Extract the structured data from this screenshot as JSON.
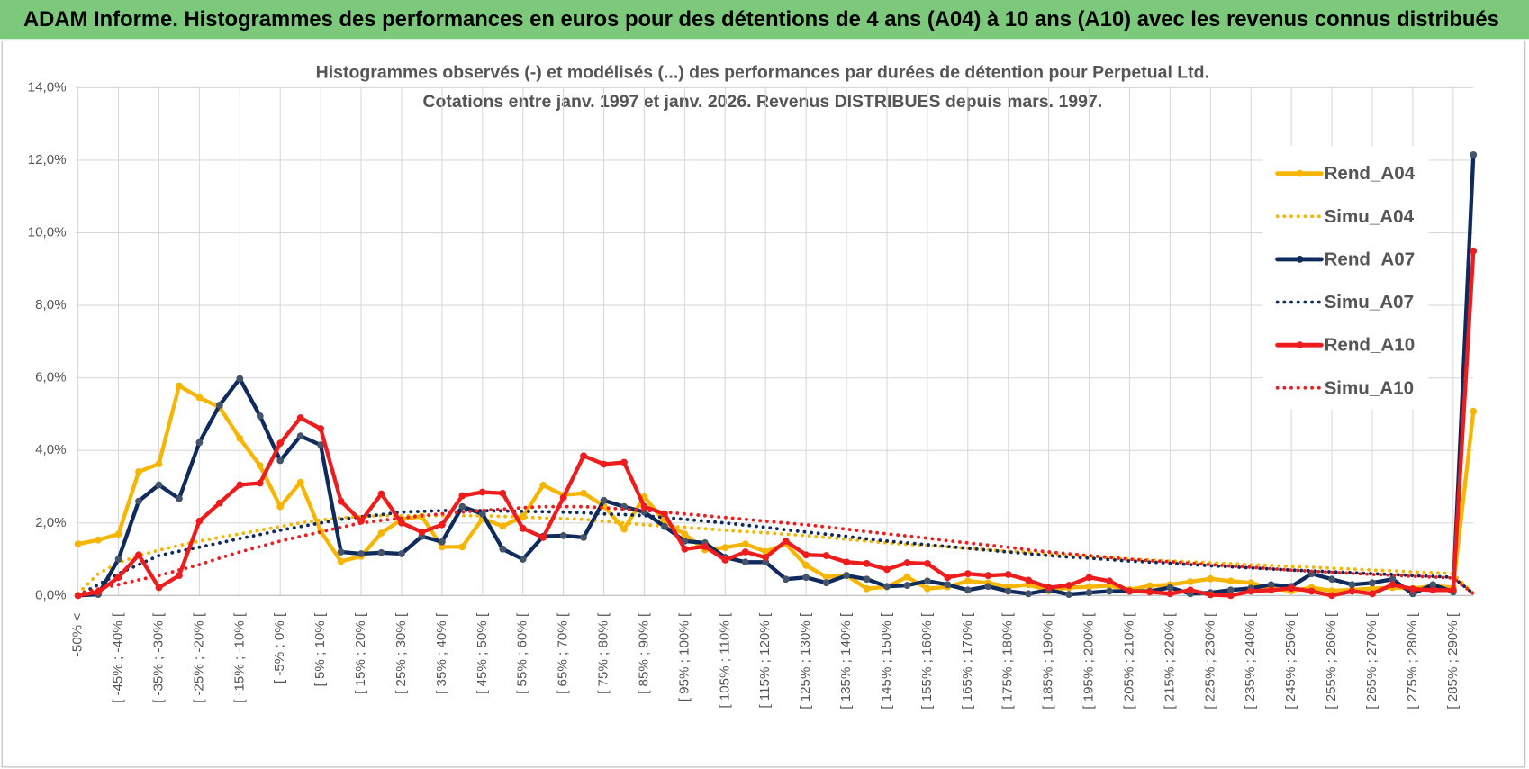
{
  "header": "ADAM Informe. Histogrammes des performances en euros pour des détentions de 4 ans (A04) à 10 ans (A10) avec les revenus connus distribués",
  "chart_data": {
    "type": "line",
    "title": "Histogrammes observés (-) et modélisés (...) des performances par durées de détention pour Perpetual Ltd.",
    "subtitle": "Cotations entre janv. 1997 et janv. 2026. Revenus DISTRIBUES depuis mars. 1997.",
    "categories": [
      "-50% <",
      null,
      "[ -45% ; -40% [",
      null,
      "[ -35% ; -30% [",
      null,
      "[ -25% ; -20% [",
      null,
      "[ -15% ; -10% [",
      null,
      "[ -5% ; 0% [",
      null,
      "[ 5% ; 10% [",
      null,
      "[ 15% ; 20% [",
      null,
      "[ 25% ; 30% [",
      null,
      "[ 35% ; 40% [",
      null,
      "[ 45% ; 50% [",
      null,
      "[ 55% ; 60% [",
      null,
      "[ 65% ; 70% [",
      null,
      "[ 75% ; 80% [",
      null,
      "[ 85% ; 90% [",
      null,
      "[ 95% ; 100% [",
      null,
      "[ 105% ; 110% [",
      null,
      "[ 115% ; 120% [",
      null,
      "[ 125% ; 130% [",
      null,
      "[ 135% ; 140% [",
      null,
      "[ 145% ; 150% [",
      null,
      "[ 155% ; 160% [",
      null,
      "[ 165% ; 170% [",
      null,
      "[ 175% ; 180% [",
      null,
      "[ 185% ; 190% [",
      null,
      "[ 195% ; 200% [",
      null,
      "[ 205% ; 210% [",
      null,
      "[ 215% ; 220% [",
      null,
      "[ 225% ; 230% [",
      null,
      "[ 235% ; 240% [",
      null,
      "[ 245% ; 250% [",
      null,
      "[ 255% ; 260% [",
      null,
      "[ 265% ; 270% [",
      null,
      "[ 275% ; 280% [",
      null,
      "[ 285% ; 290% [",
      null
    ],
    "ylim": [
      0,
      14
    ],
    "yticks": [
      {
        "value": 0,
        "label": "0,0%"
      },
      {
        "value": 2,
        "label": "2,0%"
      },
      {
        "value": 4,
        "label": "4,0%"
      },
      {
        "value": 6,
        "label": "6,0%"
      },
      {
        "value": 8,
        "label": "8,0%"
      },
      {
        "value": 10,
        "label": "10,0%"
      },
      {
        "value": 12,
        "label": "12,0%"
      },
      {
        "value": 14,
        "label": "14,0%"
      }
    ],
    "grid": true,
    "series": [
      {
        "name": "Rend_A04",
        "color": "#f7b500",
        "line_style": "solid",
        "values": [
          1.42,
          1.53,
          1.69,
          3.41,
          3.63,
          5.78,
          5.46,
          5.19,
          4.33,
          3.58,
          2.45,
          3.12,
          1.77,
          0.94,
          1.08,
          1.72,
          2.1,
          2.18,
          1.34,
          1.34,
          2.12,
          1.91,
          2.18,
          3.04,
          2.77,
          2.82,
          2.47,
          1.83,
          2.72,
          2.04,
          1.69,
          1.26,
          1.32,
          1.42,
          1.21,
          1.42,
          0.83,
          0.51,
          0.56,
          0.19,
          0.24,
          0.51,
          0.19,
          0.24,
          0.4,
          0.35,
          0.24,
          0.3,
          0.13,
          0.22,
          0.24,
          0.27,
          0.16,
          0.27,
          0.3,
          0.38,
          0.46,
          0.4,
          0.35,
          0.19,
          0.13,
          0.22,
          0.13,
          0.16,
          0.19,
          0.22,
          0.19,
          0.27,
          0.22,
          5.08
        ]
      },
      {
        "name": "Simu_A04",
        "color": "#f7b500",
        "line_style": "dotted",
        "values": [
          0.05,
          0.6,
          0.9,
          1.1,
          1.25,
          1.38,
          1.5,
          1.6,
          1.7,
          1.8,
          1.9,
          2.0,
          2.08,
          2.14,
          2.18,
          2.2,
          2.2,
          2.2,
          2.2,
          2.2,
          2.2,
          2.18,
          2.16,
          2.14,
          2.12,
          2.1,
          2.05,
          2.0,
          1.95,
          1.91,
          1.88,
          1.84,
          1.8,
          1.76,
          1.73,
          1.69,
          1.65,
          1.6,
          1.55,
          1.5,
          1.45,
          1.41,
          1.38,
          1.34,
          1.3,
          1.26,
          1.22,
          1.19,
          1.15,
          1.11,
          1.08,
          1.04,
          1.0,
          0.98,
          0.95,
          0.93,
          0.9,
          0.88,
          0.85,
          0.83,
          0.8,
          0.78,
          0.75,
          0.73,
          0.7,
          0.68,
          0.65,
          0.63,
          0.6,
          0.05
        ]
      },
      {
        "name": "Rend_A07",
        "color": "#0f2a5c",
        "line_style": "solid",
        "values": [
          0.0,
          0.03,
          1.0,
          2.6,
          3.05,
          2.67,
          4.22,
          5.25,
          5.98,
          4.95,
          3.72,
          4.4,
          4.15,
          1.2,
          1.15,
          1.18,
          1.15,
          1.63,
          1.48,
          2.45,
          2.25,
          1.28,
          1.0,
          1.63,
          1.65,
          1.6,
          2.62,
          2.45,
          2.3,
          1.9,
          1.5,
          1.45,
          1.05,
          0.92,
          0.92,
          0.45,
          0.5,
          0.35,
          0.55,
          0.45,
          0.25,
          0.28,
          0.4,
          0.3,
          0.15,
          0.25,
          0.12,
          0.05,
          0.15,
          0.03,
          0.08,
          0.12,
          0.12,
          0.12,
          0.22,
          0.05,
          0.08,
          0.15,
          0.2,
          0.3,
          0.25,
          0.6,
          0.45,
          0.3,
          0.35,
          0.45,
          0.05,
          0.3,
          0.1,
          12.15
        ]
      },
      {
        "name": "Simu_A07",
        "color": "#0f2a5c",
        "line_style": "dotted",
        "values": [
          0,
          0.3,
          0.6,
          0.85,
          1.1,
          1.22,
          1.33,
          1.45,
          1.57,
          1.68,
          1.8,
          1.9,
          2.0,
          2.1,
          2.17,
          2.23,
          2.3,
          2.32,
          2.34,
          2.35,
          2.34,
          2.33,
          2.32,
          2.31,
          2.3,
          2.28,
          2.25,
          2.23,
          2.2,
          2.15,
          2.1,
          2.05,
          2.0,
          1.94,
          1.88,
          1.81,
          1.75,
          1.69,
          1.63,
          1.56,
          1.5,
          1.45,
          1.4,
          1.35,
          1.3,
          1.25,
          1.2,
          1.15,
          1.1,
          1.06,
          1.03,
          0.99,
          0.95,
          0.92,
          0.89,
          0.85,
          0.82,
          0.79,
          0.76,
          0.73,
          0.7,
          0.68,
          0.65,
          0.63,
          0.6,
          0.58,
          0.55,
          0.53,
          0.5,
          0.05
        ]
      },
      {
        "name": "Rend_A10",
        "color": "#ee1c1c",
        "line_style": "solid",
        "values": [
          0.0,
          0.1,
          0.5,
          1.12,
          0.22,
          0.55,
          2.05,
          2.55,
          3.05,
          3.1,
          4.2,
          4.9,
          4.6,
          2.6,
          2.05,
          2.8,
          2.0,
          1.75,
          1.95,
          2.75,
          2.85,
          2.82,
          1.85,
          1.6,
          2.7,
          3.85,
          3.62,
          3.67,
          2.45,
          2.25,
          1.28,
          1.35,
          0.98,
          1.2,
          1.05,
          1.5,
          1.12,
          1.1,
          0.92,
          0.88,
          0.72,
          0.9,
          0.88,
          0.5,
          0.6,
          0.55,
          0.58,
          0.42,
          0.22,
          0.28,
          0.5,
          0.4,
          0.12,
          0.1,
          0.05,
          0.15,
          0.02,
          0.0,
          0.12,
          0.15,
          0.2,
          0.12,
          0.0,
          0.12,
          0.05,
          0.3,
          0.18,
          0.15,
          0.15,
          9.5
        ]
      },
      {
        "name": "Simu_A10",
        "color": "#ee1c1c",
        "line_style": "dotted",
        "values": [
          0.05,
          0.18,
          0.3,
          0.43,
          0.55,
          0.7,
          0.85,
          1.03,
          1.2,
          1.35,
          1.5,
          1.63,
          1.75,
          1.88,
          2.0,
          2.07,
          2.13,
          2.2,
          2.25,
          2.3,
          2.35,
          2.38,
          2.42,
          2.45,
          2.45,
          2.45,
          2.42,
          2.38,
          2.35,
          2.3,
          2.25,
          2.2,
          2.15,
          2.1,
          2.05,
          2.0,
          1.95,
          1.89,
          1.83,
          1.76,
          1.7,
          1.64,
          1.58,
          1.51,
          1.45,
          1.39,
          1.33,
          1.26,
          1.2,
          1.15,
          1.1,
          1.05,
          1.0,
          0.96,
          0.93,
          0.89,
          0.85,
          0.81,
          0.78,
          0.74,
          0.7,
          0.67,
          0.64,
          0.61,
          0.58,
          0.56,
          0.53,
          0.51,
          0.48,
          0.05
        ]
      }
    ]
  }
}
